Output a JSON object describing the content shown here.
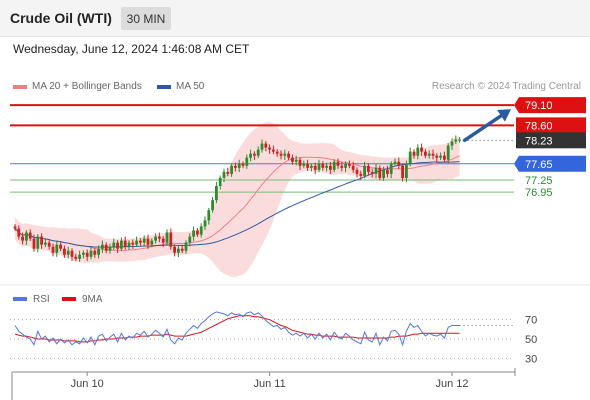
{
  "header": {
    "instrument": "Crude Oil (WTI)",
    "interval": "30 MIN"
  },
  "datetime": "Wednesday, June 12, 2024 1:46:08 AM CET",
  "legend": {
    "ma20": {
      "label": "MA 20 + Bollinger Bands",
      "color": "#f08080"
    },
    "ma50": {
      "label": "MA 50",
      "color": "#2c5aa0"
    }
  },
  "credit": "Research © 2024 Trading Central",
  "colors": {
    "up": "#2d8a2d",
    "down": "#cc2222",
    "resistance": "#dd1111",
    "pivot": "#5577dd",
    "support": "#77bb77",
    "band": "#fbdcdc",
    "rsi": "#5577dd",
    "rsi_ma": "#dd1111",
    "arrow": "#2c5aa0"
  },
  "chart_data": [
    {
      "type": "candlestick",
      "ylim": [
        74.9,
        79.4
      ],
      "current_price": "78.23",
      "levels": [
        {
          "value": 79.1,
          "label": "79.10",
          "kind": "resistance"
        },
        {
          "value": 78.6,
          "label": "78.60",
          "kind": "resistance"
        },
        {
          "value": 77.65,
          "label": "77.65",
          "kind": "pivot"
        },
        {
          "value": 77.25,
          "label": "77.25",
          "kind": "support"
        },
        {
          "value": 76.95,
          "label": "76.95",
          "kind": "support"
        }
      ],
      "x_ticks": [
        {
          "label": "Jun 10",
          "index": 19
        },
        {
          "label": "Jun 11",
          "index": 67
        },
        {
          "label": "Jun 12",
          "index": 115
        }
      ],
      "close": [
        76.05,
        75.85,
        75.75,
        75.95,
        75.8,
        75.55,
        75.85,
        75.65,
        75.7,
        75.6,
        75.45,
        75.65,
        75.55,
        75.4,
        75.5,
        75.35,
        75.3,
        75.4,
        75.45,
        75.35,
        75.5,
        75.4,
        75.55,
        75.65,
        75.5,
        75.6,
        75.7,
        75.55,
        75.75,
        75.6,
        75.7,
        75.65,
        75.75,
        75.7,
        75.8,
        75.65,
        75.75,
        75.85,
        75.8,
        75.7,
        75.95,
        75.6,
        75.45,
        75.55,
        75.5,
        75.7,
        75.85,
        76.0,
        75.9,
        76.1,
        76.25,
        76.5,
        76.75,
        77.1,
        77.3,
        77.45,
        77.4,
        77.6,
        77.55,
        77.65,
        77.6,
        77.8,
        77.9,
        77.85,
        78.0,
        78.15,
        78.05,
        78.0,
        77.95,
        77.9,
        77.85,
        77.9,
        77.8,
        77.7,
        77.75,
        77.6,
        77.65,
        77.55,
        77.6,
        77.5,
        77.65,
        77.55,
        77.6,
        77.5,
        77.7,
        77.6,
        77.55,
        77.65,
        77.6,
        77.5,
        77.4,
        77.35,
        77.6,
        77.45,
        77.4,
        77.55,
        77.3,
        77.5,
        77.4,
        77.65,
        77.7,
        77.6,
        77.3,
        77.65,
        77.95,
        77.85,
        78.05,
        77.95,
        77.85,
        77.9,
        77.85,
        77.8,
        77.85,
        77.75,
        78.1,
        78.2,
        78.25,
        78.25
      ],
      "rsi": {
        "ticks": [
          "70",
          "50",
          "30"
        ],
        "ylim": [
          20,
          80
        ],
        "values": [
          64,
          58,
          55,
          52,
          50,
          44,
          58,
          50,
          53,
          47,
          51,
          45,
          50,
          46,
          49,
          44,
          47,
          45,
          51,
          46,
          52,
          44,
          53,
          55,
          48,
          52,
          55,
          47,
          56,
          49,
          53,
          51,
          56,
          54,
          58,
          52,
          55,
          59,
          56,
          52,
          60,
          49,
          45,
          51,
          49,
          56,
          60,
          64,
          61,
          66,
          69,
          73,
          76,
          78,
          77,
          76,
          74,
          77,
          75,
          76,
          73,
          77,
          78,
          75,
          77,
          74,
          69,
          66,
          63,
          64,
          60,
          62,
          57,
          54,
          56,
          53,
          56,
          51,
          55,
          50,
          56,
          51,
          55,
          49,
          57,
          52,
          50,
          56,
          53,
          49,
          47,
          45,
          57,
          49,
          47,
          56,
          44,
          52,
          48,
          58,
          59,
          55,
          44,
          58,
          66,
          62,
          64,
          58,
          53,
          56,
          54,
          53,
          55,
          51,
          62,
          64,
          64,
          64
        ],
        "ma": [
          55,
          54,
          53,
          53,
          52,
          51,
          50,
          50,
          50,
          49,
          49,
          49,
          49,
          48,
          48,
          48,
          48,
          47,
          47,
          47,
          48,
          48,
          49,
          49,
          50,
          50,
          50,
          51,
          51,
          51,
          52,
          52,
          52,
          53,
          53,
          53,
          54,
          54,
          54,
          54,
          55,
          54,
          53,
          53,
          53,
          53,
          54,
          55,
          56,
          57,
          59,
          61,
          63,
          65,
          67,
          69,
          71,
          72,
          73,
          74,
          74,
          74,
          74,
          73,
          73,
          72,
          71,
          70,
          68,
          66,
          64,
          63,
          61,
          59,
          58,
          57,
          56,
          55,
          55,
          54,
          54,
          53,
          53,
          53,
          53,
          52,
          52,
          52,
          52,
          52,
          51,
          51,
          51,
          51,
          51,
          51,
          51,
          51,
          51,
          52,
          52,
          53,
          53,
          53,
          54,
          55,
          55,
          56,
          56,
          56,
          56,
          56,
          56,
          56,
          56,
          56,
          56,
          56
        ]
      }
    }
  ]
}
